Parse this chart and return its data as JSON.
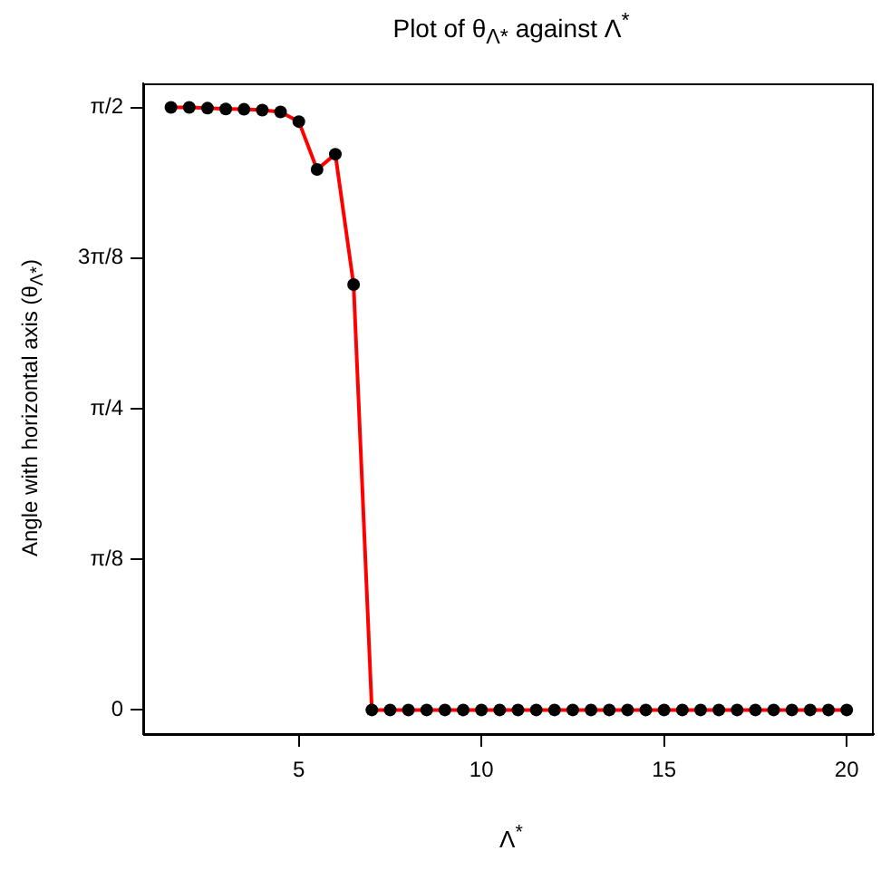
{
  "chart_data": {
    "type": "line",
    "title": "Plot of θ$_{Λ*}$ against Λ$^{*}$",
    "xlabel": "Λ$^{*}$",
    "ylabel": "Angle with horizontal axis (θ$_{Λ*}$)",
    "x": [
      1.5,
      2,
      2.5,
      3,
      3.5,
      4,
      4.5,
      5,
      5.5,
      6,
      6.5,
      7,
      7.5,
      8,
      8.5,
      9,
      9.5,
      10,
      10.5,
      11,
      11.5,
      12,
      12.5,
      13,
      13.5,
      14,
      14.5,
      15,
      15.5,
      16,
      16.5,
      17,
      17.5,
      18,
      18.5,
      19,
      19.5,
      20
    ],
    "series": [
      {
        "color": "#ff0000",
        "values": [
          1.571,
          1.571,
          1.569,
          1.567,
          1.566,
          1.564,
          1.559,
          1.534,
          1.409,
          1.449,
          1.109,
          0,
          0,
          0,
          0,
          0,
          0,
          0,
          0,
          0,
          0,
          0,
          0,
          0,
          0,
          0,
          0,
          0,
          0,
          0,
          0,
          0,
          0,
          0,
          0,
          0,
          0,
          0
        ]
      }
    ],
    "xlim": [
      0.74,
      20.74
    ],
    "xticks": [
      5,
      10,
      15,
      20
    ],
    "ylim": [
      -0.0628,
      1.6336
    ],
    "yticks": [
      {
        "value": 0,
        "label": "0"
      },
      {
        "value": 0.3927,
        "label": "π/8"
      },
      {
        "value": 0.7854,
        "label": "π/4"
      },
      {
        "value": 1.1781,
        "label": "3π/8"
      },
      {
        "value": 1.5708,
        "label": "π/2"
      }
    ],
    "grid": false,
    "legend": false,
    "marker": "circle",
    "line_style": "solid"
  }
}
